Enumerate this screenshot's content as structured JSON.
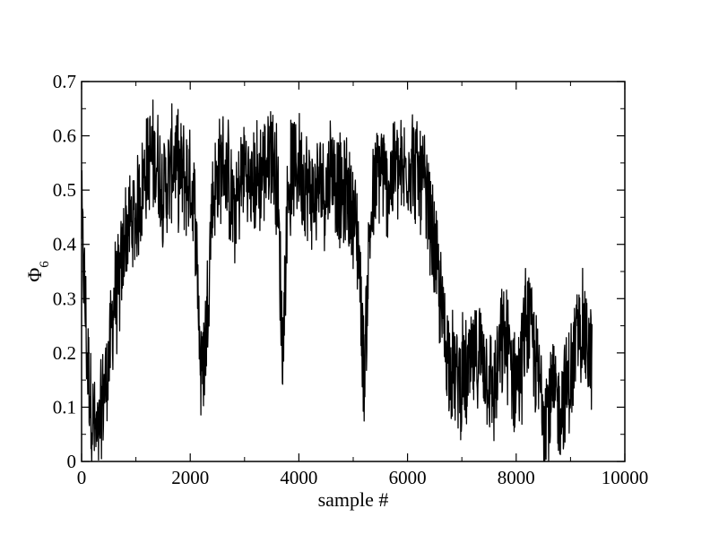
{
  "chart_data": {
    "type": "line",
    "xlabel": "sample #",
    "ylabel": {
      "main": "Φ",
      "sub": "6"
    },
    "xlim": [
      0,
      10000
    ],
    "ylim": [
      0,
      0.7
    ],
    "x_ticks": [
      0,
      2000,
      4000,
      6000,
      8000,
      10000
    ],
    "y_ticks": [
      0,
      0.1,
      0.2,
      0.3,
      0.4,
      0.5,
      0.6,
      0.7
    ],
    "x_tick_labels": [
      "0",
      "2000",
      "4000",
      "6000",
      "8000",
      "10000"
    ],
    "y_tick_labels": [
      "0",
      "0.1",
      "0.2",
      "0.3",
      "0.4",
      "0.5",
      "0.6",
      "0.7"
    ],
    "grid": false,
    "legend": "none",
    "line_color": "#000000",
    "series": [
      {
        "x": [
          0,
          100,
          200,
          300,
          400,
          500,
          600,
          700,
          800,
          900,
          1000,
          1100,
          1200,
          1300,
          1400,
          1500,
          1600,
          1700,
          1800,
          1900,
          2000,
          2100,
          2200,
          2300,
          2400,
          2500,
          2600,
          2700,
          2800,
          2900,
          3000,
          3100,
          3200,
          3300,
          3400,
          3500,
          3600,
          3700,
          3800,
          3900,
          4000,
          4100,
          4200,
          4300,
          4400,
          4500,
          4600,
          4700,
          4800,
          4900,
          5000,
          5100,
          5200,
          5300,
          5400,
          5500,
          5600,
          5700,
          5800,
          5900,
          6000,
          6100,
          6200,
          6300,
          6400,
          6500,
          6600,
          6700,
          6800,
          6900,
          7000,
          7100,
          7200,
          7300,
          7400,
          7500,
          7600,
          7700,
          7800,
          7900,
          8000,
          8100,
          8200,
          8300,
          8400,
          8500,
          8600,
          8700,
          8800,
          8900,
          9000,
          9100,
          9200,
          9300,
          9400
        ],
        "y": [
          0.45,
          0.2,
          0.08,
          0.03,
          0.12,
          0.18,
          0.3,
          0.32,
          0.42,
          0.44,
          0.45,
          0.5,
          0.55,
          0.56,
          0.55,
          0.5,
          0.52,
          0.56,
          0.53,
          0.52,
          0.52,
          0.45,
          0.15,
          0.25,
          0.48,
          0.52,
          0.55,
          0.52,
          0.45,
          0.5,
          0.55,
          0.5,
          0.52,
          0.53,
          0.55,
          0.58,
          0.52,
          0.2,
          0.5,
          0.54,
          0.55,
          0.52,
          0.5,
          0.48,
          0.52,
          0.5,
          0.55,
          0.52,
          0.48,
          0.5,
          0.45,
          0.4,
          0.15,
          0.42,
          0.5,
          0.55,
          0.5,
          0.52,
          0.55,
          0.52,
          0.55,
          0.56,
          0.52,
          0.5,
          0.45,
          0.38,
          0.3,
          0.22,
          0.18,
          0.15,
          0.16,
          0.15,
          0.18,
          0.2,
          0.2,
          0.15,
          0.12,
          0.2,
          0.22,
          0.18,
          0.15,
          0.18,
          0.28,
          0.22,
          0.15,
          0.12,
          0.1,
          0.12,
          0.1,
          0.13,
          0.15,
          0.22,
          0.25,
          0.22,
          0.18
        ]
      }
    ]
  }
}
